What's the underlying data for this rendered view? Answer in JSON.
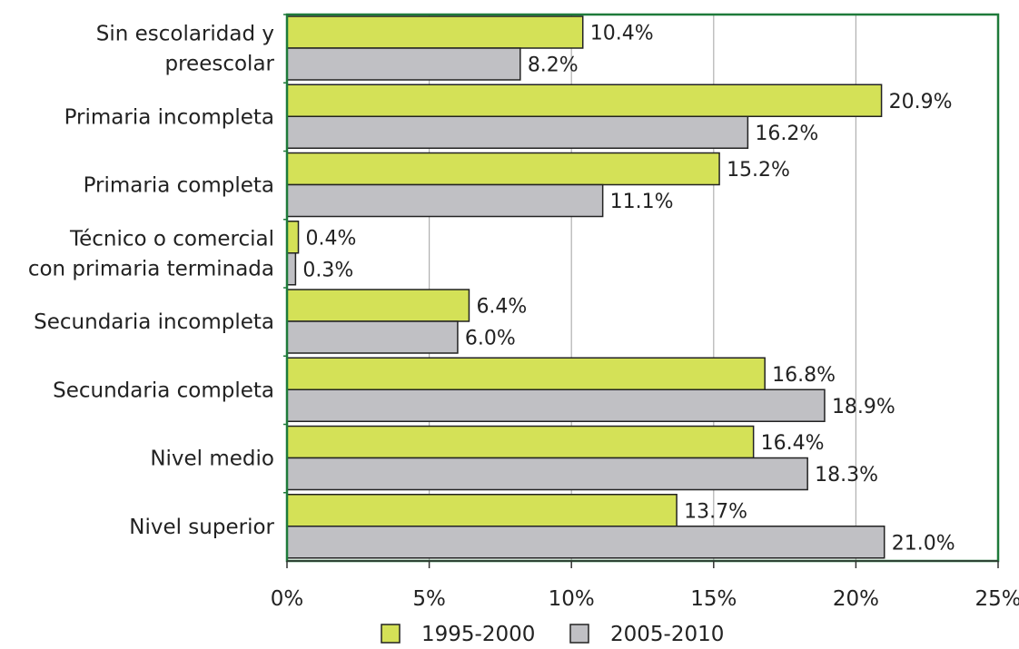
{
  "chart_data": {
    "type": "bar",
    "orientation": "horizontal",
    "categories": [
      [
        "Sin escolaridad y",
        "preescolar"
      ],
      [
        "Primaria incompleta"
      ],
      [
        "Primaria completa"
      ],
      [
        "Técnico o comercial",
        "con primaria terminada"
      ],
      [
        "Secundaria incompleta"
      ],
      [
        "Secundaria completa"
      ],
      [
        "Nivel medio"
      ],
      [
        "Nivel superior"
      ]
    ],
    "series": [
      {
        "name": "1995-2000",
        "color": "#d4e157",
        "values": [
          10.4,
          20.9,
          15.2,
          0.4,
          6.4,
          16.8,
          16.4,
          13.7
        ],
        "labels": [
          "10.4%",
          "20.9%",
          "15.2%",
          "0.4%",
          "6.4%",
          "16.8%",
          "16.4%",
          "13.7%"
        ]
      },
      {
        "name": "2005-2010",
        "color": "#c0c0c4",
        "values": [
          8.2,
          16.2,
          11.1,
          0.3,
          6.0,
          18.9,
          18.3,
          21.0
        ],
        "labels": [
          "8.2%",
          "16.2%",
          "11.1%",
          "0.3%",
          "6.0%",
          "18.9%",
          "18.3%",
          "21.0%"
        ]
      }
    ],
    "xlim": [
      0,
      25
    ],
    "xticks": [
      0,
      5,
      10,
      15,
      20,
      25
    ],
    "xtick_labels": [
      "0%",
      "5%",
      "10%",
      "15%",
      "20%",
      "25%"
    ],
    "grid": "vertical",
    "legend_position": "bottom-center",
    "frame_color": "#1e7a3a"
  }
}
